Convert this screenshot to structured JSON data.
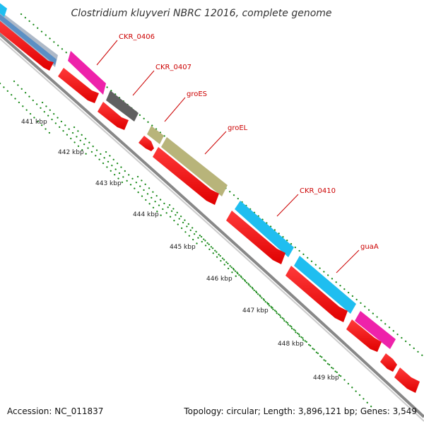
{
  "title": "Clostridium kluyveri NBRC 12016, complete genome",
  "footer": {
    "accession": "Accession: NC_011837",
    "summary": "Topology: circular; Length: 3,896,121 bp; Genes: 3,549"
  },
  "ticks": [
    "441 kbp",
    "442 kbp",
    "443 kbp",
    "444 kbp",
    "445 kbp",
    "446 kbp",
    "447 kbp",
    "448 kbp",
    "449 kbp"
  ],
  "gene_labels": [
    "CKR_0406",
    "CKR_0407",
    "groES",
    "groEL",
    "CKR_0410",
    "guaA"
  ],
  "colors": {
    "cds_forward": "#ff0000",
    "cds_reverse": "#ff0000",
    "backbone": "#888888",
    "gene_label": "#cc0000",
    "tick_dots": "#1a8a1a",
    "feature_cyan": "#1fbef0",
    "feature_magenta": "#ee22aa",
    "feature_olive": "#b8b47a",
    "feature_gray": "#606060",
    "feature_steel": "#5b8fc4"
  }
}
